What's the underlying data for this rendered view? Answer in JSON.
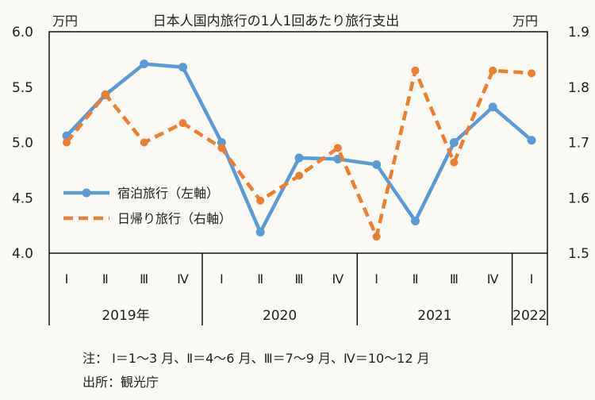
{
  "chart_data": {
    "type": "line",
    "title": "日本人国内旅行の1人1回あたり旅行支出",
    "yunit_left": "万円",
    "yunit_right": "万円",
    "ylim_left": [
      4.0,
      6.0
    ],
    "yticks_left": [
      "4.0",
      "4.5",
      "5.0",
      "5.5",
      "6.0"
    ],
    "ylim_right": [
      1.5,
      1.9
    ],
    "yticks_right": [
      "1.5",
      "1.6",
      "1.7",
      "1.8",
      "1.9"
    ],
    "quarters": [
      "Ⅰ",
      "Ⅱ",
      "Ⅲ",
      "Ⅳ",
      "Ⅰ",
      "Ⅱ",
      "Ⅲ",
      "Ⅳ",
      "Ⅰ",
      "Ⅱ",
      "Ⅲ",
      "Ⅳ",
      "Ⅰ"
    ],
    "year_groups": [
      {
        "label": "2019年",
        "count": 4
      },
      {
        "label": "2020",
        "count": 4
      },
      {
        "label": "2021",
        "count": 4
      },
      {
        "label": "2022",
        "count": 1
      }
    ],
    "series": [
      {
        "name": "宿泊旅行（左軸）",
        "axis": "left",
        "style": "solid-marker",
        "color": "#5b9bd5",
        "values": [
          5.06,
          5.43,
          5.71,
          5.68,
          5.0,
          4.19,
          4.86,
          4.85,
          4.8,
          4.29,
          5.0,
          5.32,
          5.02
        ]
      },
      {
        "name": "日帰り旅行（右軸）",
        "axis": "right",
        "style": "dashed",
        "color": "#ed7d31",
        "values": [
          1.7,
          1.787,
          1.7,
          1.735,
          1.69,
          1.595,
          1.64,
          1.69,
          1.53,
          1.83,
          1.664,
          1.83,
          1.825
        ]
      }
    ],
    "legend": "center-left",
    "grid": false
  },
  "notes": {
    "line1": "注： Ⅰ＝1～3 月、Ⅱ＝4～6 月、Ⅲ＝7～9 月、Ⅳ＝10～12 月",
    "line2": "出所：観光庁"
  }
}
